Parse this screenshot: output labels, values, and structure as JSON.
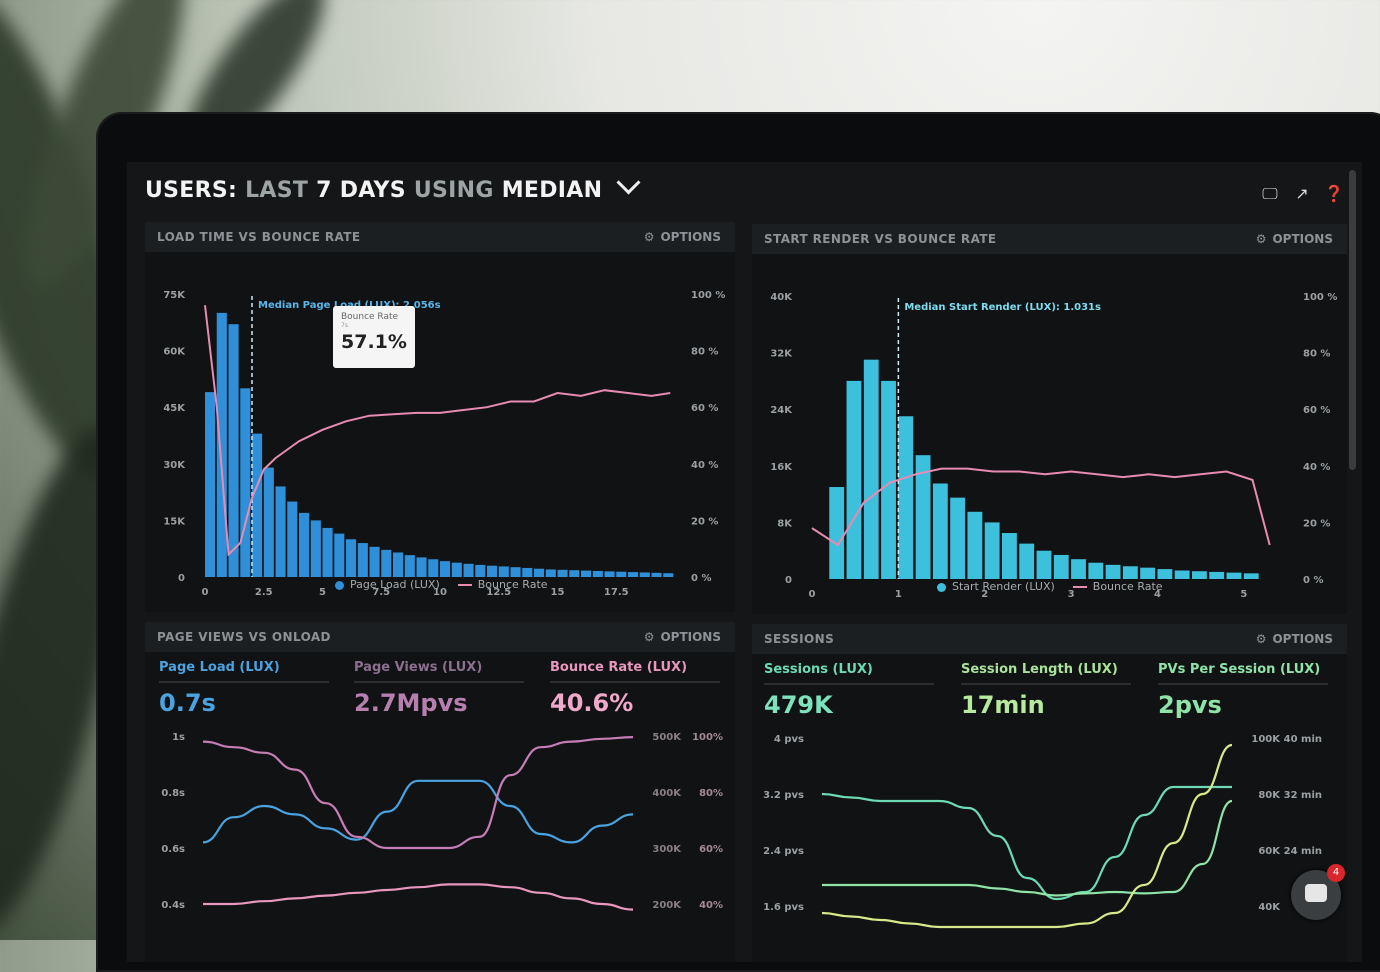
{
  "dashboard": {
    "title_part1": "USERS:",
    "title_part2": "LAST",
    "title_part3": "7 DAYS",
    "title_part4": "USING",
    "title_part5": "MEDIAN"
  },
  "panels": {
    "load_time": {
      "title": "LOAD TIME VS BOUNCE RATE",
      "options": "OPTIONS",
      "median_label": "Median Page Load (LUX): 2.056s",
      "tooltip_title": "Bounce Rate",
      "tooltip_sub": "7s",
      "tooltip_value": "57.1%",
      "legend_series1": "Page Load (LUX)",
      "legend_series2": "Bounce Rate"
    },
    "start_render": {
      "title": "START RENDER VS BOUNCE RATE",
      "options": "OPTIONS",
      "median_label": "Median Start Render (LUX): 1.031s",
      "legend_series1": "Start Render (LUX)",
      "legend_series2": "Bounce Rate"
    },
    "page_views": {
      "title": "PAGE VIEWS VS ONLOAD",
      "options": "OPTIONS",
      "metrics": [
        {
          "label": "Page Load (LUX)",
          "value": "0.7s"
        },
        {
          "label": "Page Views (LUX)",
          "value": "2.7Mpvs"
        },
        {
          "label": "Bounce Rate (LUX)",
          "value": "40.6%"
        }
      ]
    },
    "sessions": {
      "title": "SESSIONS",
      "options": "OPTIONS",
      "metrics": [
        {
          "label": "Sessions (LUX)",
          "value": "479K"
        },
        {
          "label": "Session Length (LUX)",
          "value": "17min"
        },
        {
          "label": "PVs Per Session (LUX)",
          "value": "2pvs"
        }
      ]
    }
  },
  "chat": {
    "badge": "4"
  },
  "chart_data": [
    {
      "type": "bar",
      "title": "LOAD TIME VS BOUNCE RATE",
      "x_ticks": [
        "0",
        "2.5",
        "5",
        "7.5",
        "10",
        "12.5",
        "15",
        "17.5"
      ],
      "y_left_ticks": [
        "0",
        "15K",
        "30K",
        "45K",
        "60K",
        "75K"
      ],
      "y_right_ticks": [
        "0 %",
        "20 %",
        "40 %",
        "60 %",
        "80 %",
        "100 %"
      ],
      "ylim_left": [
        0,
        75000
      ],
      "ylim_right": [
        0,
        100
      ],
      "xlim": [
        0,
        20
      ],
      "color_bars": "#2f8fd8",
      "color_line": "#e88bb3",
      "series": [
        {
          "name": "Page Load (LUX)",
          "x": [
            0,
            0.5,
            1,
            1.5,
            2,
            2.5,
            3,
            3.5,
            4,
            4.5,
            5,
            5.5,
            6,
            6.5,
            7,
            7.5,
            8,
            8.5,
            9,
            9.5,
            10,
            10.5,
            11,
            11.5,
            12,
            12.5,
            13,
            13.5,
            14,
            14.5,
            15,
            15.5,
            16,
            16.5,
            17,
            17.5,
            18,
            18.5,
            19,
            19.5
          ],
          "values": [
            49000,
            70000,
            67000,
            50000,
            38000,
            29000,
            24000,
            20000,
            17000,
            15000,
            13000,
            11500,
            10000,
            9000,
            8000,
            7200,
            6500,
            5800,
            5200,
            4700,
            4200,
            3800,
            3500,
            3200,
            3000,
            2800,
            2600,
            2400,
            2200,
            2000,
            1900,
            1800,
            1700,
            1600,
            1500,
            1400,
            1300,
            1200,
            1100,
            1000
          ]
        },
        {
          "name": "Bounce Rate",
          "x": [
            0,
            0.5,
            1,
            1.5,
            2,
            2.5,
            3,
            4,
            5,
            6,
            7,
            8,
            9,
            10,
            11,
            12,
            13,
            14,
            15,
            16,
            17,
            18,
            19,
            19.8
          ],
          "values": [
            96,
            60,
            8,
            12,
            28,
            38,
            42,
            48,
            52,
            55,
            57,
            57.5,
            58,
            58,
            59,
            60,
            62,
            62,
            65,
            64,
            66,
            65,
            64,
            65
          ]
        }
      ]
    },
    {
      "type": "bar",
      "title": "START RENDER VS BOUNCE RATE",
      "x_ticks": [
        "0",
        "1",
        "2",
        "3",
        "4",
        "5"
      ],
      "y_left_ticks": [
        "0",
        "8K",
        "16K",
        "24K",
        "32K",
        "40K"
      ],
      "y_right_ticks": [
        "0 %",
        "20 %",
        "40 %",
        "60 %",
        "80 %",
        "100 %"
      ],
      "ylim_left": [
        0,
        40000
      ],
      "ylim_right": [
        0,
        100
      ],
      "xlim": [
        0,
        5.5
      ],
      "color_bars": "#3cc0dc",
      "color_line": "#e88bb3",
      "series": [
        {
          "name": "Start Render (LUX)",
          "x": [
            0.2,
            0.4,
            0.6,
            0.8,
            1.0,
            1.2,
            1.4,
            1.6,
            1.8,
            2.0,
            2.2,
            2.4,
            2.6,
            2.8,
            3.0,
            3.2,
            3.4,
            3.6,
            3.8,
            4.0,
            4.2,
            4.4,
            4.6,
            4.8,
            5.0
          ],
          "values": [
            13000,
            28000,
            31000,
            28000,
            23000,
            17500,
            13500,
            11500,
            9500,
            8000,
            6500,
            5000,
            4000,
            3400,
            2800,
            2300,
            2000,
            1800,
            1600,
            1400,
            1200,
            1100,
            1000,
            900,
            800
          ]
        },
        {
          "name": "Bounce Rate",
          "x": [
            0,
            0.3,
            0.6,
            0.9,
            1.2,
            1.5,
            1.8,
            2.1,
            2.4,
            2.7,
            3.0,
            3.3,
            3.6,
            3.9,
            4.2,
            4.5,
            4.8,
            5.1,
            5.3
          ],
          "values": [
            18,
            12,
            27,
            34,
            37,
            39,
            39,
            38,
            38,
            37,
            38,
            37,
            36,
            37,
            36,
            37,
            38,
            35,
            12
          ]
        }
      ]
    },
    {
      "type": "line",
      "title": "PAGE VIEWS VS ONLOAD",
      "y_left_ticks": [
        "0.4s",
        "0.6s",
        "0.8s",
        "1s"
      ],
      "y_right_ticks_1": [
        "200K",
        "300K",
        "400K",
        "500K"
      ],
      "y_right_ticks_2": [
        "40%",
        "60%",
        "80%",
        "100%"
      ],
      "series": [
        {
          "name": "Page Load (LUX)",
          "color": "#4aa3e0",
          "values": [
            0.62,
            0.71,
            0.75,
            0.72,
            0.67,
            0.63,
            0.73,
            0.84,
            0.84,
            0.84,
            0.75,
            0.65,
            0.62,
            0.68,
            0.72
          ]
        },
        {
          "name": "Page Views (LUX)",
          "color": "#c77db6",
          "values": [
            490000,
            480000,
            470000,
            440000,
            380000,
            320000,
            300000,
            300000,
            300000,
            320000,
            430000,
            480000,
            490000,
            495000,
            498000
          ]
        },
        {
          "name": "Bounce Rate (LUX)",
          "color": "#e897bf",
          "values": [
            40,
            40,
            41,
            42,
            43,
            44,
            45,
            46,
            47,
            47,
            46,
            44,
            42,
            40,
            38
          ]
        }
      ]
    },
    {
      "type": "line",
      "title": "SESSIONS",
      "y_left_ticks": [
        "1.6 pvs",
        "2.4 pvs",
        "3.2 pvs",
        "4 pvs"
      ],
      "y_right_ticks_1": [
        "40K",
        "60K",
        "80K",
        "100K"
      ],
      "y_right_ticks_2": [
        "24 min",
        "32 min",
        "40 min"
      ],
      "series": [
        {
          "name": "Sessions (LUX)",
          "color": "#6ddab3",
          "values": [
            3.2,
            3.15,
            3.1,
            3.1,
            3.1,
            3.0,
            2.6,
            2.0,
            1.7,
            1.8,
            2.3,
            2.9,
            3.3,
            3.3,
            3.3
          ]
        },
        {
          "name": "Session Length (LUX)",
          "color": "#8fe3a8",
          "values": [
            1.9,
            1.9,
            1.9,
            1.9,
            1.9,
            1.9,
            1.85,
            1.8,
            1.75,
            1.78,
            1.8,
            1.78,
            1.8,
            2.2,
            3.1
          ]
        },
        {
          "name": "PVs Per Session (LUX)",
          "color": "#d6e98a",
          "values": [
            1.5,
            1.45,
            1.4,
            1.35,
            1.3,
            1.3,
            1.3,
            1.3,
            1.3,
            1.35,
            1.5,
            1.9,
            2.5,
            3.2,
            3.9
          ]
        }
      ]
    }
  ]
}
